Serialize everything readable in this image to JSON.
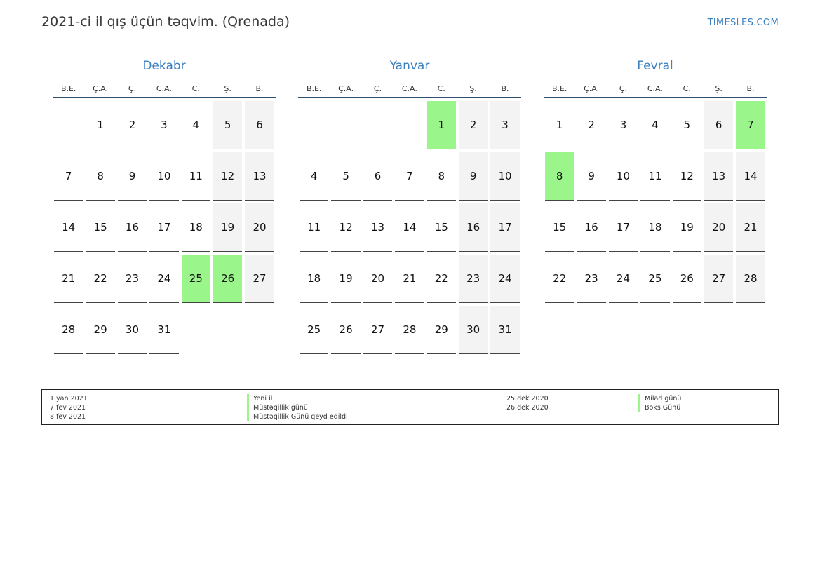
{
  "header": {
    "title": "2021-ci il qış üçün təqvim. (Qrenada)",
    "site": "TIMESLES.COM"
  },
  "weekdays": [
    "B.E.",
    "Ç.A.",
    "Ç.",
    "C.A.",
    "C.",
    "Ş.",
    "B."
  ],
  "colors": {
    "accent": "#3a7fc0",
    "holiday": "#9af58a",
    "weekend": "#f3f3f3"
  },
  "months": [
    {
      "name": "Dekabr",
      "weeks": [
        [
          "",
          "1",
          "2",
          "3",
          "4",
          "5",
          "6"
        ],
        [
          "7",
          "8",
          "9",
          "10",
          "11",
          "12",
          "13"
        ],
        [
          "14",
          "15",
          "16",
          "17",
          "18",
          "19",
          "20"
        ],
        [
          "21",
          "22",
          "23",
          "24",
          "25",
          "26",
          "27"
        ],
        [
          "28",
          "29",
          "30",
          "31",
          "",
          "",
          ""
        ]
      ],
      "holidays": [
        "25",
        "26"
      ]
    },
    {
      "name": "Yanvar",
      "weeks": [
        [
          "",
          "",
          "",
          "",
          "1",
          "2",
          "3"
        ],
        [
          "4",
          "5",
          "6",
          "7",
          "8",
          "9",
          "10"
        ],
        [
          "11",
          "12",
          "13",
          "14",
          "15",
          "16",
          "17"
        ],
        [
          "18",
          "19",
          "20",
          "21",
          "22",
          "23",
          "24"
        ],
        [
          "25",
          "26",
          "27",
          "28",
          "29",
          "30",
          "31"
        ]
      ],
      "holidays": [
        "1"
      ]
    },
    {
      "name": "Fevral",
      "weeks": [
        [
          "1",
          "2",
          "3",
          "4",
          "5",
          "6",
          "7"
        ],
        [
          "8",
          "9",
          "10",
          "11",
          "12",
          "13",
          "14"
        ],
        [
          "15",
          "16",
          "17",
          "18",
          "19",
          "20",
          "21"
        ],
        [
          "22",
          "23",
          "24",
          "25",
          "26",
          "27",
          "28"
        ]
      ],
      "holidays": [
        "7",
        "8"
      ]
    }
  ],
  "legend": {
    "left": [
      {
        "date": "1 yan 2021",
        "name": "Yeni il"
      },
      {
        "date": "7 fev 2021",
        "name": "Müstəqillik günü"
      },
      {
        "date": "8 fev 2021",
        "name": "Müstəqillik Günü qeyd edildi"
      }
    ],
    "right": [
      {
        "date": "25 dek 2020",
        "name": "Milad günü"
      },
      {
        "date": "26 dek 2020",
        "name": "Boks Günü"
      }
    ]
  }
}
